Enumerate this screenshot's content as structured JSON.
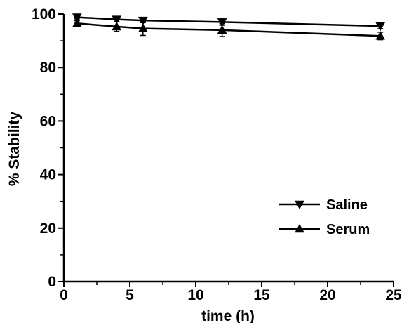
{
  "chart_data": {
    "type": "line",
    "xlabel": "time (h)",
    "ylabel": "% Stability",
    "xlim": [
      0,
      25
    ],
    "ylim": [
      0,
      100
    ],
    "xticks": [
      "0",
      "5",
      "10",
      "15",
      "20",
      "25"
    ],
    "yticks": [
      "0",
      "20",
      "40",
      "60",
      "80",
      "100"
    ],
    "grid": false,
    "legend_position": "bottom-right",
    "series": [
      {
        "name": "Saline",
        "marker": "triangle-down",
        "x": [
          1,
          4,
          6,
          12,
          24
        ],
        "y": [
          98.8,
          98.0,
          97.6,
          97.0,
          95.5
        ],
        "error": [
          0.6,
          0.8,
          0.8,
          1.2,
          1.0
        ]
      },
      {
        "name": "Serum",
        "marker": "triangle-up",
        "x": [
          1,
          4,
          6,
          12,
          24
        ],
        "y": [
          96.5,
          95.3,
          94.6,
          94.0,
          91.8
        ],
        "error": [
          1.0,
          1.8,
          2.6,
          2.4,
          1.4
        ]
      }
    ],
    "colors": {
      "line": "#000000",
      "background": "#ffffff"
    }
  }
}
